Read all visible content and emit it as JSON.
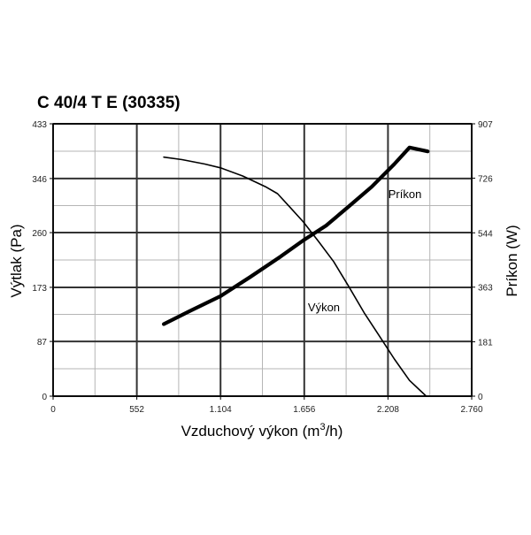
{
  "chart_data": {
    "type": "line",
    "title": "C 40/4 T E (30335)",
    "xlabel": "Vzduchový výkon (m",
    "xlabel_sup": "3",
    "xlabel_tail": "/h)",
    "ylabel_left": "Výtlak (Pa)",
    "ylabel_right": "Príkon (W)",
    "xlim": [
      0,
      2760
    ],
    "ylim_left": [
      0,
      433
    ],
    "ylim_right": [
      0,
      907
    ],
    "x_ticks": [
      0,
      552,
      1104,
      1656,
      2208,
      2760
    ],
    "x_tick_labels": [
      "0",
      "552",
      "1.104",
      "1.656",
      "2.208",
      "2.760"
    ],
    "y_left_ticks": [
      0,
      87,
      173,
      260,
      346,
      433
    ],
    "y_left_tick_labels": [
      "0",
      "87",
      "173",
      "260",
      "346",
      "433"
    ],
    "y_right_ticks": [
      0,
      181,
      363,
      544,
      726,
      907
    ],
    "y_right_tick_labels": [
      "0",
      "181",
      "363",
      "544",
      "726",
      "907"
    ],
    "grid": true,
    "series": [
      {
        "name": "Výkon",
        "axis": "left",
        "color": "#000000",
        "x": [
          730,
          850,
          1000,
          1104,
          1250,
          1400,
          1480,
          1560,
          1650,
          1750,
          1850,
          1950,
          2050,
          2150,
          2250,
          2350,
          2460
        ],
        "y": [
          380,
          376,
          369,
          363,
          350,
          333,
          322,
          301,
          277,
          246,
          214,
          174,
          133,
          96,
          59,
          25,
          0
        ]
      },
      {
        "name": "Príkon",
        "axis": "right",
        "color": "#000000",
        "x": [
          730,
          900,
          1104,
          1300,
          1500,
          1656,
          1800,
          1950,
          2100,
          2250,
          2350,
          2470
        ],
        "y": [
          240,
          283,
          333,
          397,
          465,
          521,
          568,
          632,
          697,
          773,
          828,
          815
        ]
      }
    ],
    "annotations": [
      {
        "text": "Príkon",
        "x": 2210,
        "y_left": 315
      },
      {
        "text": "Výkon",
        "x": 1680,
        "y_left": 135
      }
    ]
  }
}
